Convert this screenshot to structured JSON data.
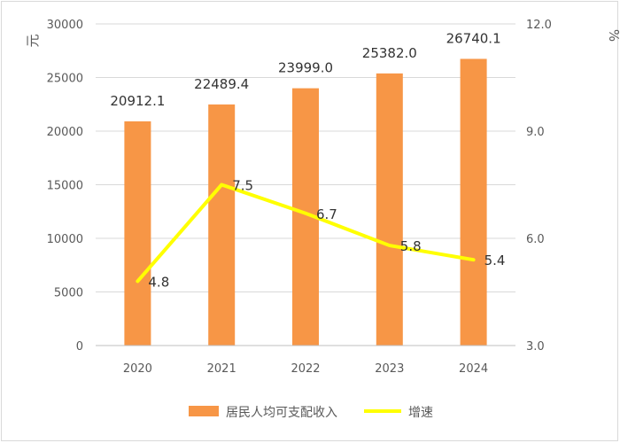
{
  "chart_data": {
    "type": "bar",
    "categories": [
      "2020",
      "2021",
      "2022",
      "2023",
      "2024"
    ],
    "series": [
      {
        "name": "居民人均可支配收入",
        "type": "bar",
        "axis": "left",
        "values": [
          20912.1,
          22489.4,
          23999.0,
          25382.0,
          26740.1
        ],
        "labels": [
          "20912.1",
          "22489.4",
          "23999.0",
          "25382.0",
          "26740.1"
        ],
        "color": "#F79646"
      },
      {
        "name": "增速",
        "type": "line",
        "axis": "right",
        "values": [
          4.8,
          7.5,
          6.7,
          5.8,
          5.4
        ],
        "labels": [
          "4.8",
          "7.5",
          "6.7",
          "5.8",
          "5.4"
        ],
        "color": "#FFFF00"
      }
    ],
    "y_left": {
      "unit_label": "元",
      "min": 0,
      "max": 30000,
      "ticks": [
        "0",
        "5000",
        "10000",
        "15000",
        "20000",
        "25000",
        "30000"
      ]
    },
    "y_right": {
      "unit_label": "%",
      "min": 3.0,
      "max": 12.0,
      "ticks": [
        "3.0",
        "6.0",
        "9.0",
        "12.0"
      ]
    },
    "grid": true,
    "legend_position": "bottom"
  }
}
